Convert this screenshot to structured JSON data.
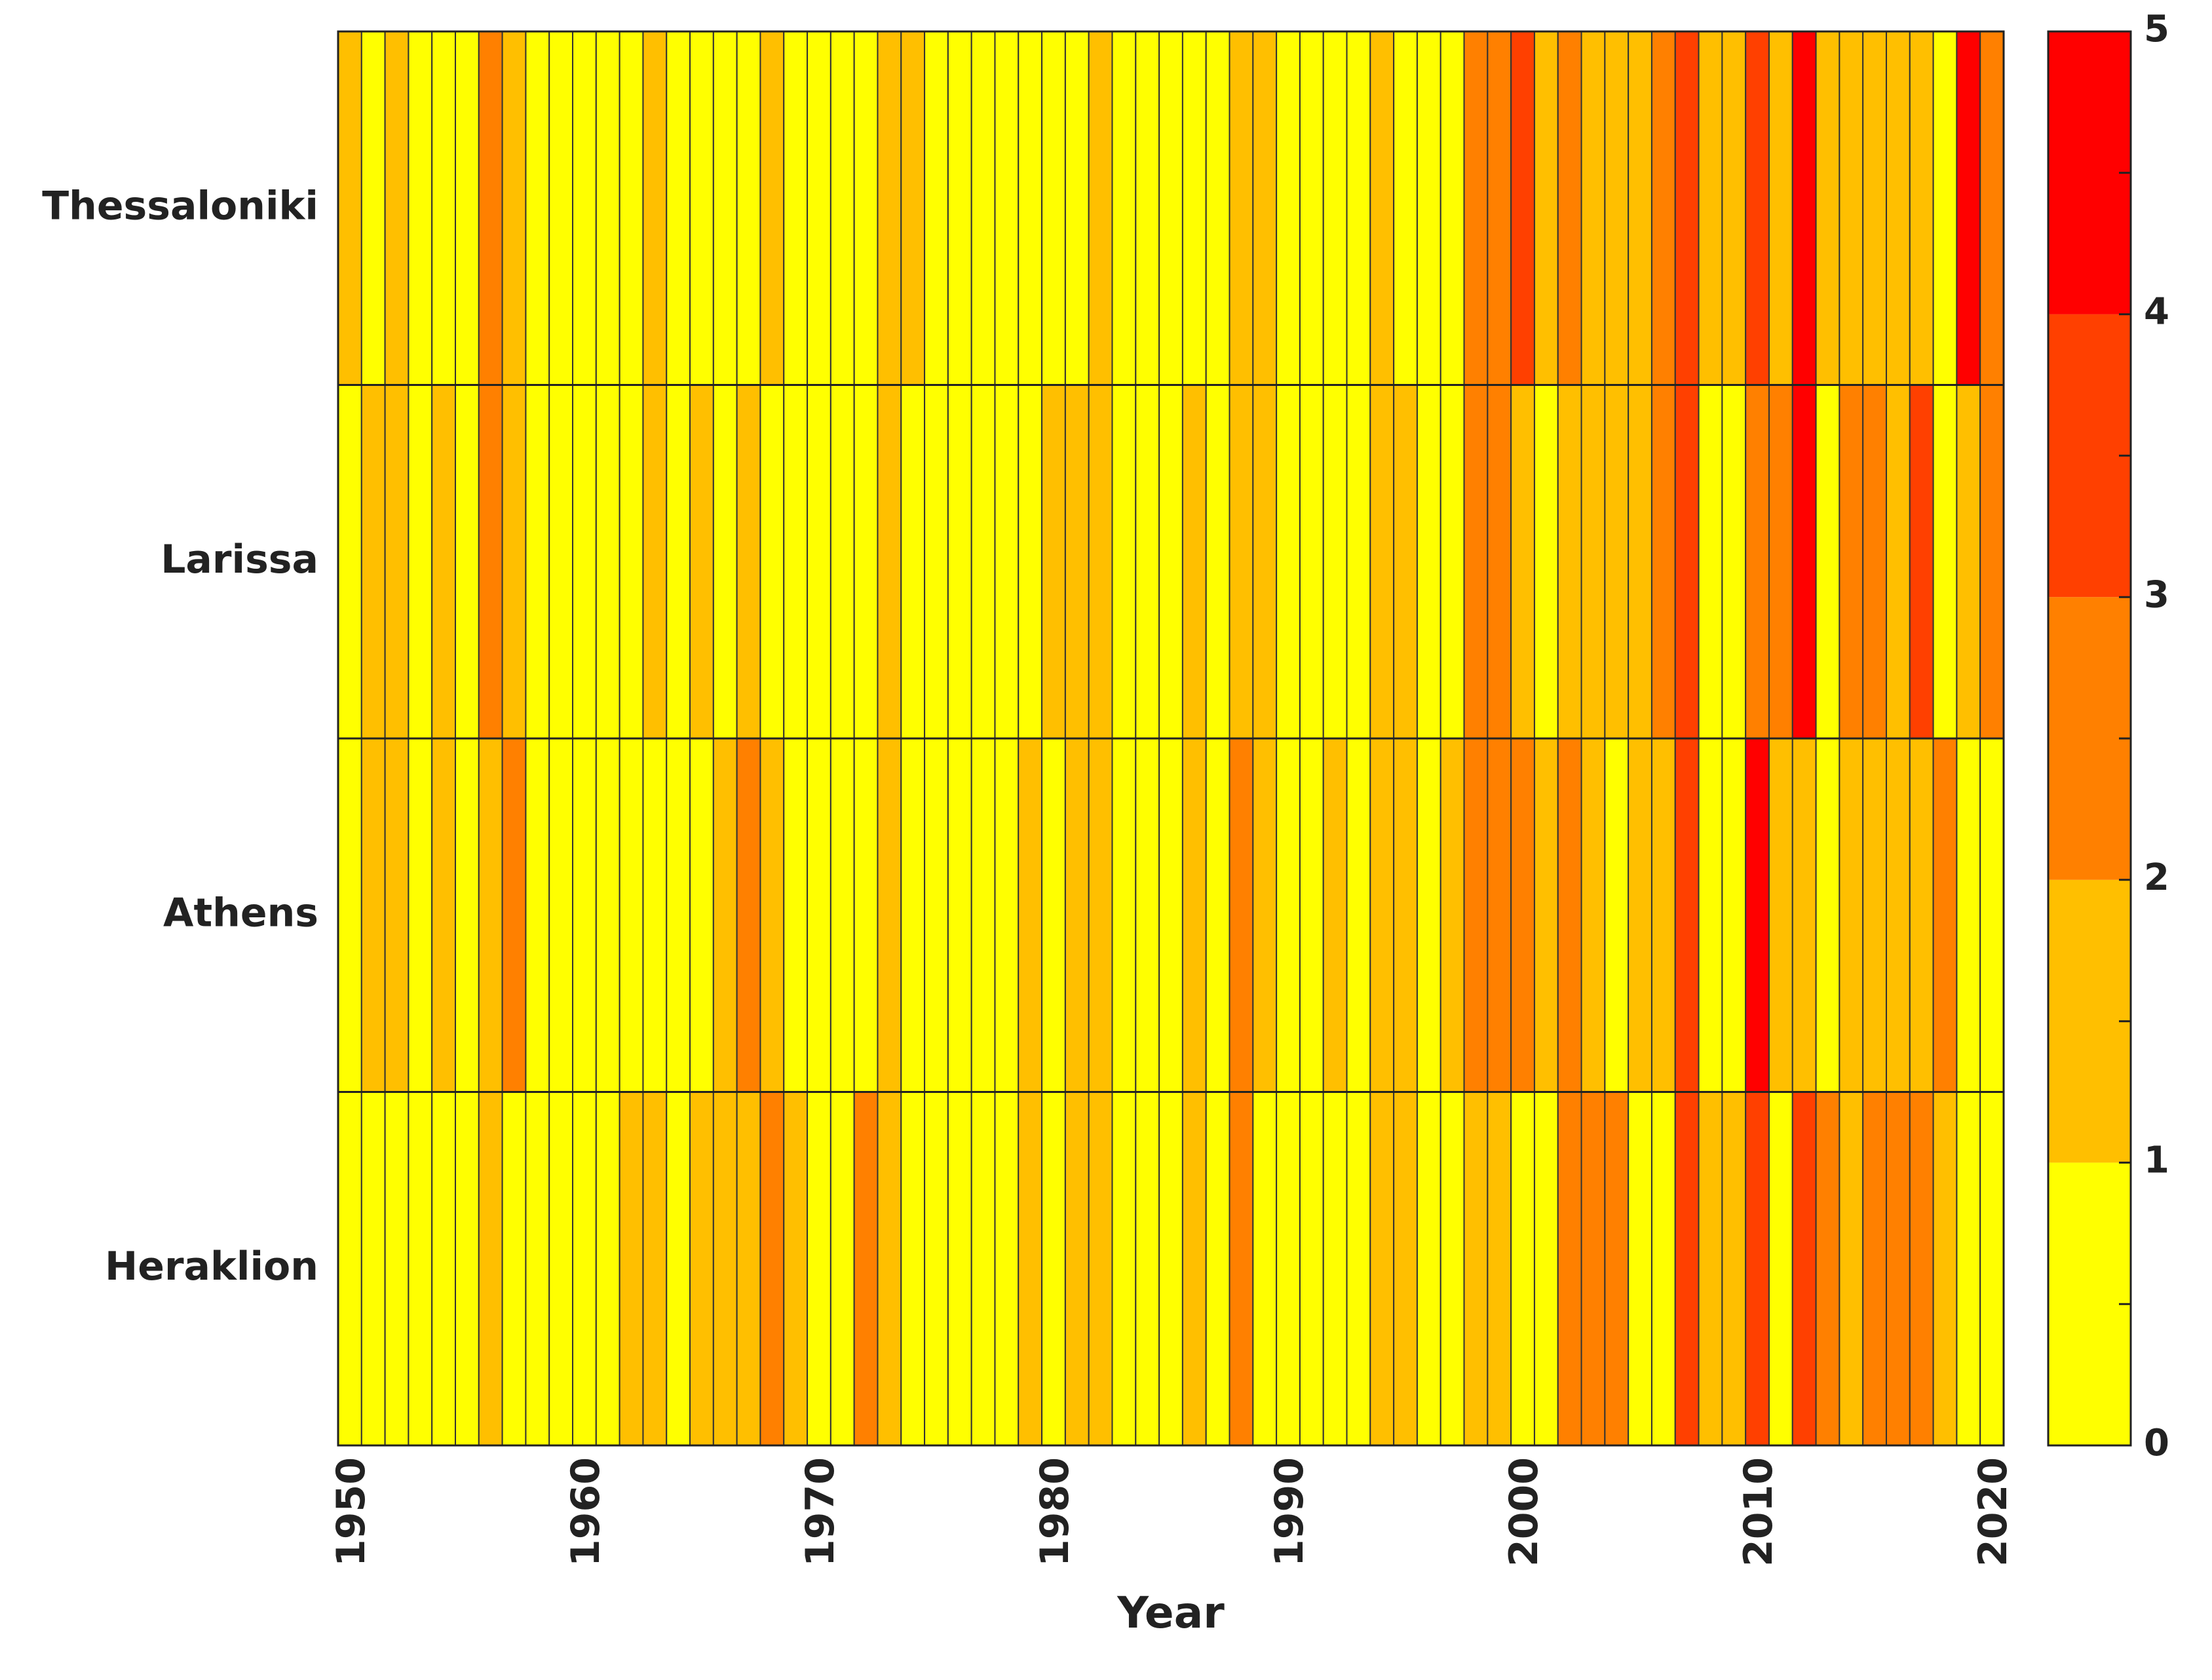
{
  "chart_data": {
    "type": "heatmap",
    "title": "",
    "xlabel": "Year",
    "ylabel": "",
    "x_start": 1950,
    "x_end": 2020,
    "xlim": [
      1949.5,
      2020.5
    ],
    "x_ticks": [
      "1950",
      "1960",
      "1970",
      "1980",
      "1990",
      "2000",
      "2010",
      "2020"
    ],
    "rows": [
      "Thessaloniki",
      "Larissa",
      "Athens",
      "Heraklion"
    ],
    "values": [
      [
        1,
        0,
        1,
        0,
        0,
        0,
        2,
        1,
        0,
        0,
        0,
        0,
        0,
        1,
        0,
        0,
        0,
        0,
        1,
        0,
        0,
        0,
        0,
        1,
        1,
        0,
        0,
        0,
        0,
        0,
        0,
        0,
        1,
        0,
        0,
        0,
        0,
        0,
        1,
        1,
        0,
        0,
        0,
        0,
        1,
        0,
        0,
        0,
        2,
        2,
        3,
        1,
        2,
        1,
        1,
        1,
        2,
        3,
        1,
        1,
        3,
        1,
        4,
        1,
        1,
        1,
        1,
        1,
        0,
        4,
        2
      ],
      [
        0,
        1,
        1,
        0,
        1,
        0,
        2,
        1,
        0,
        0,
        0,
        0,
        0,
        1,
        0,
        1,
        0,
        1,
        0,
        0,
        0,
        0,
        0,
        1,
        0,
        0,
        0,
        0,
        0,
        0,
        1,
        1,
        1,
        0,
        0,
        0,
        1,
        0,
        1,
        1,
        0,
        0,
        0,
        0,
        1,
        1,
        0,
        0,
        2,
        2,
        1,
        0,
        1,
        1,
        1,
        1,
        2,
        3,
        0,
        0,
        2,
        2,
        4,
        0,
        2,
        2,
        1,
        3,
        0,
        1,
        2
      ],
      [
        0,
        1,
        1,
        0,
        1,
        0,
        1,
        2,
        0,
        0,
        0,
        0,
        0,
        0,
        0,
        0,
        1,
        2,
        1,
        0,
        0,
        0,
        0,
        1,
        0,
        0,
        0,
        0,
        0,
        1,
        0,
        1,
        1,
        0,
        0,
        0,
        1,
        0,
        2,
        1,
        0,
        0,
        1,
        0,
        1,
        1,
        0,
        1,
        2,
        2,
        2,
        1,
        2,
        1,
        0,
        1,
        1,
        3,
        0,
        0,
        4,
        1,
        1,
        0,
        1,
        1,
        1,
        1,
        2,
        0,
        0
      ],
      [
        0,
        0,
        0,
        0,
        0,
        0,
        1,
        0,
        0,
        0,
        0,
        0,
        1,
        1,
        0,
        1,
        1,
        1,
        2,
        1,
        0,
        0,
        2,
        1,
        0,
        0,
        0,
        0,
        0,
        1,
        0,
        1,
        1,
        0,
        0,
        0,
        1,
        0,
        2,
        0,
        0,
        0,
        0,
        0,
        1,
        1,
        0,
        0,
        1,
        1,
        0,
        0,
        2,
        2,
        2,
        0,
        0,
        3,
        1,
        1,
        3,
        0,
        3,
        2,
        1,
        2,
        2,
        2,
        1,
        0,
        0
      ]
    ],
    "colorbar": {
      "min": 0,
      "max": 5,
      "tick_labels": [
        "0",
        "1",
        "2",
        "3",
        "4",
        "5"
      ],
      "colors": [
        "#FFFF00",
        "#FFBF00",
        "#FF8000",
        "#FF4000",
        "#FF0000"
      ]
    },
    "grid": false
  }
}
